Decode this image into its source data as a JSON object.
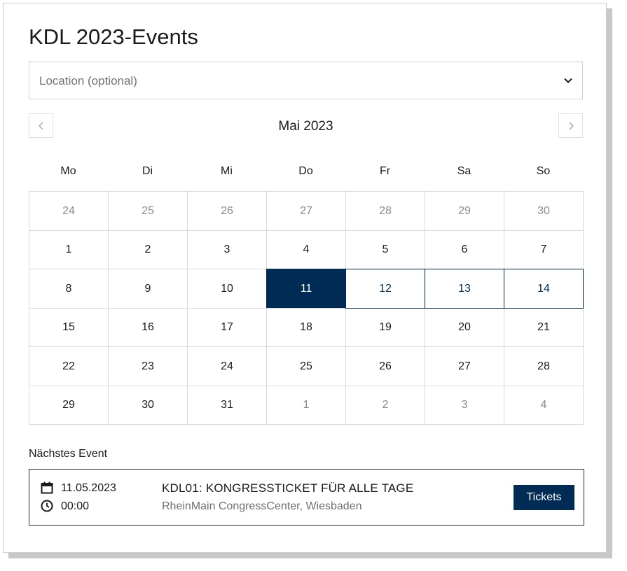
{
  "title": "KDL 2023-Events",
  "location_select": {
    "placeholder": "Location (optional)",
    "icon": "chevron-down-icon"
  },
  "calendar": {
    "month_label": "Mai 2023",
    "prev_icon": "chevron-left-icon",
    "next_icon": "chevron-right-icon",
    "weekdays": [
      "Mo",
      "Di",
      "Mi",
      "Do",
      "Fr",
      "Sa",
      "So"
    ],
    "weeks": [
      [
        {
          "day": "24",
          "muted": true
        },
        {
          "day": "25",
          "muted": true
        },
        {
          "day": "26",
          "muted": true
        },
        {
          "day": "27",
          "muted": true
        },
        {
          "day": "28",
          "muted": true
        },
        {
          "day": "29",
          "muted": true
        },
        {
          "day": "30",
          "muted": true
        }
      ],
      [
        {
          "day": "1"
        },
        {
          "day": "2"
        },
        {
          "day": "3"
        },
        {
          "day": "4"
        },
        {
          "day": "5"
        },
        {
          "day": "6"
        },
        {
          "day": "7"
        }
      ],
      [
        {
          "day": "8"
        },
        {
          "day": "9"
        },
        {
          "day": "10"
        },
        {
          "day": "11",
          "selected": true
        },
        {
          "day": "12",
          "event": true
        },
        {
          "day": "13",
          "event": true
        },
        {
          "day": "14",
          "event": true
        }
      ],
      [
        {
          "day": "15"
        },
        {
          "day": "16"
        },
        {
          "day": "17"
        },
        {
          "day": "18"
        },
        {
          "day": "19"
        },
        {
          "day": "20"
        },
        {
          "day": "21"
        }
      ],
      [
        {
          "day": "22"
        },
        {
          "day": "23"
        },
        {
          "day": "24"
        },
        {
          "day": "25"
        },
        {
          "day": "26"
        },
        {
          "day": "27"
        },
        {
          "day": "28"
        }
      ],
      [
        {
          "day": "29"
        },
        {
          "day": "30"
        },
        {
          "day": "31"
        },
        {
          "day": "1",
          "muted": true
        },
        {
          "day": "2",
          "muted": true
        },
        {
          "day": "3",
          "muted": true
        },
        {
          "day": "4",
          "muted": true
        }
      ]
    ]
  },
  "next_event": {
    "section_label": "Nächstes Event",
    "date": "11.05.2023",
    "time": "00:00",
    "title": "KDL01: KONGRESSTICKET FÜR ALLE TAGE",
    "venue": "RheinMain CongressCenter, Wiesbaden",
    "button_label": "Tickets",
    "date_icon": "calendar-icon",
    "time_icon": "clock-icon"
  },
  "colors": {
    "accent": "#002b55",
    "muted_text": "#8a8a8a",
    "border": "#d9d9d9"
  }
}
